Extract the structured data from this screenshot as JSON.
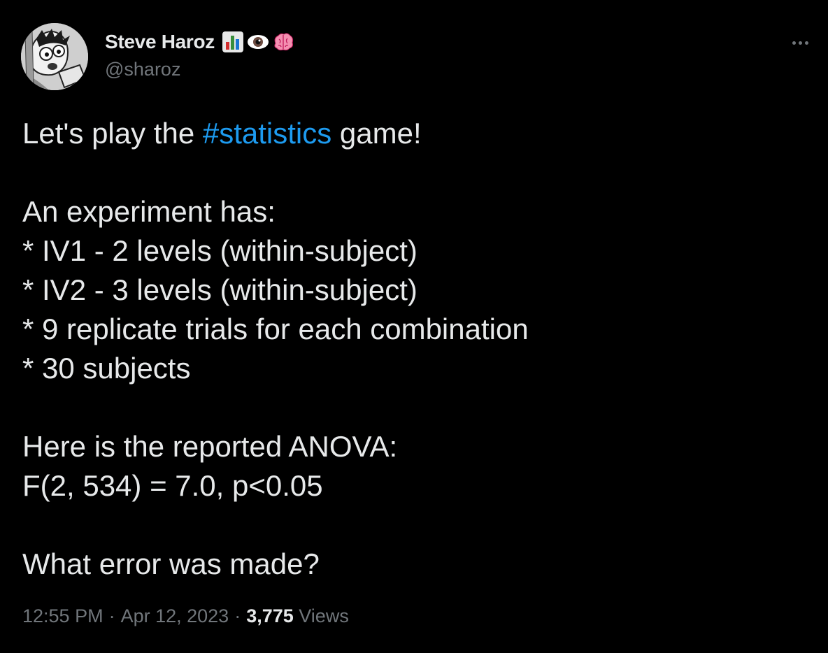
{
  "author": {
    "display_name": "Steve Haroz",
    "handle": "@sharoz",
    "badges": [
      "bar-chart-emoji",
      "eye-emoji",
      "brain-emoji"
    ]
  },
  "tweet": {
    "intro_before": "Let's play the ",
    "hashtag": "#statistics",
    "intro_after": " game!",
    "line_experiment": "An experiment has:",
    "line_iv1": "* IV1 - 2 levels (within-subject)",
    "line_iv2": "* IV2 - 3 levels (within-subject)",
    "line_trials": "* 9 replicate trials for each combination",
    "line_subjects": "* 30 subjects",
    "line_anova_intro": "Here is the reported ANOVA:",
    "line_anova": "F(2, 534) = 7.0, p<0.05",
    "line_question": "What error was made?"
  },
  "meta": {
    "time": "12:55 PM",
    "separator": "·",
    "date": "Apr 12, 2023",
    "views_count": "3,775",
    "views_label": " Views"
  },
  "colors": {
    "background": "#000000",
    "text": "#e7e9ea",
    "secondary": "#71767b",
    "link": "#1d9bf0"
  }
}
